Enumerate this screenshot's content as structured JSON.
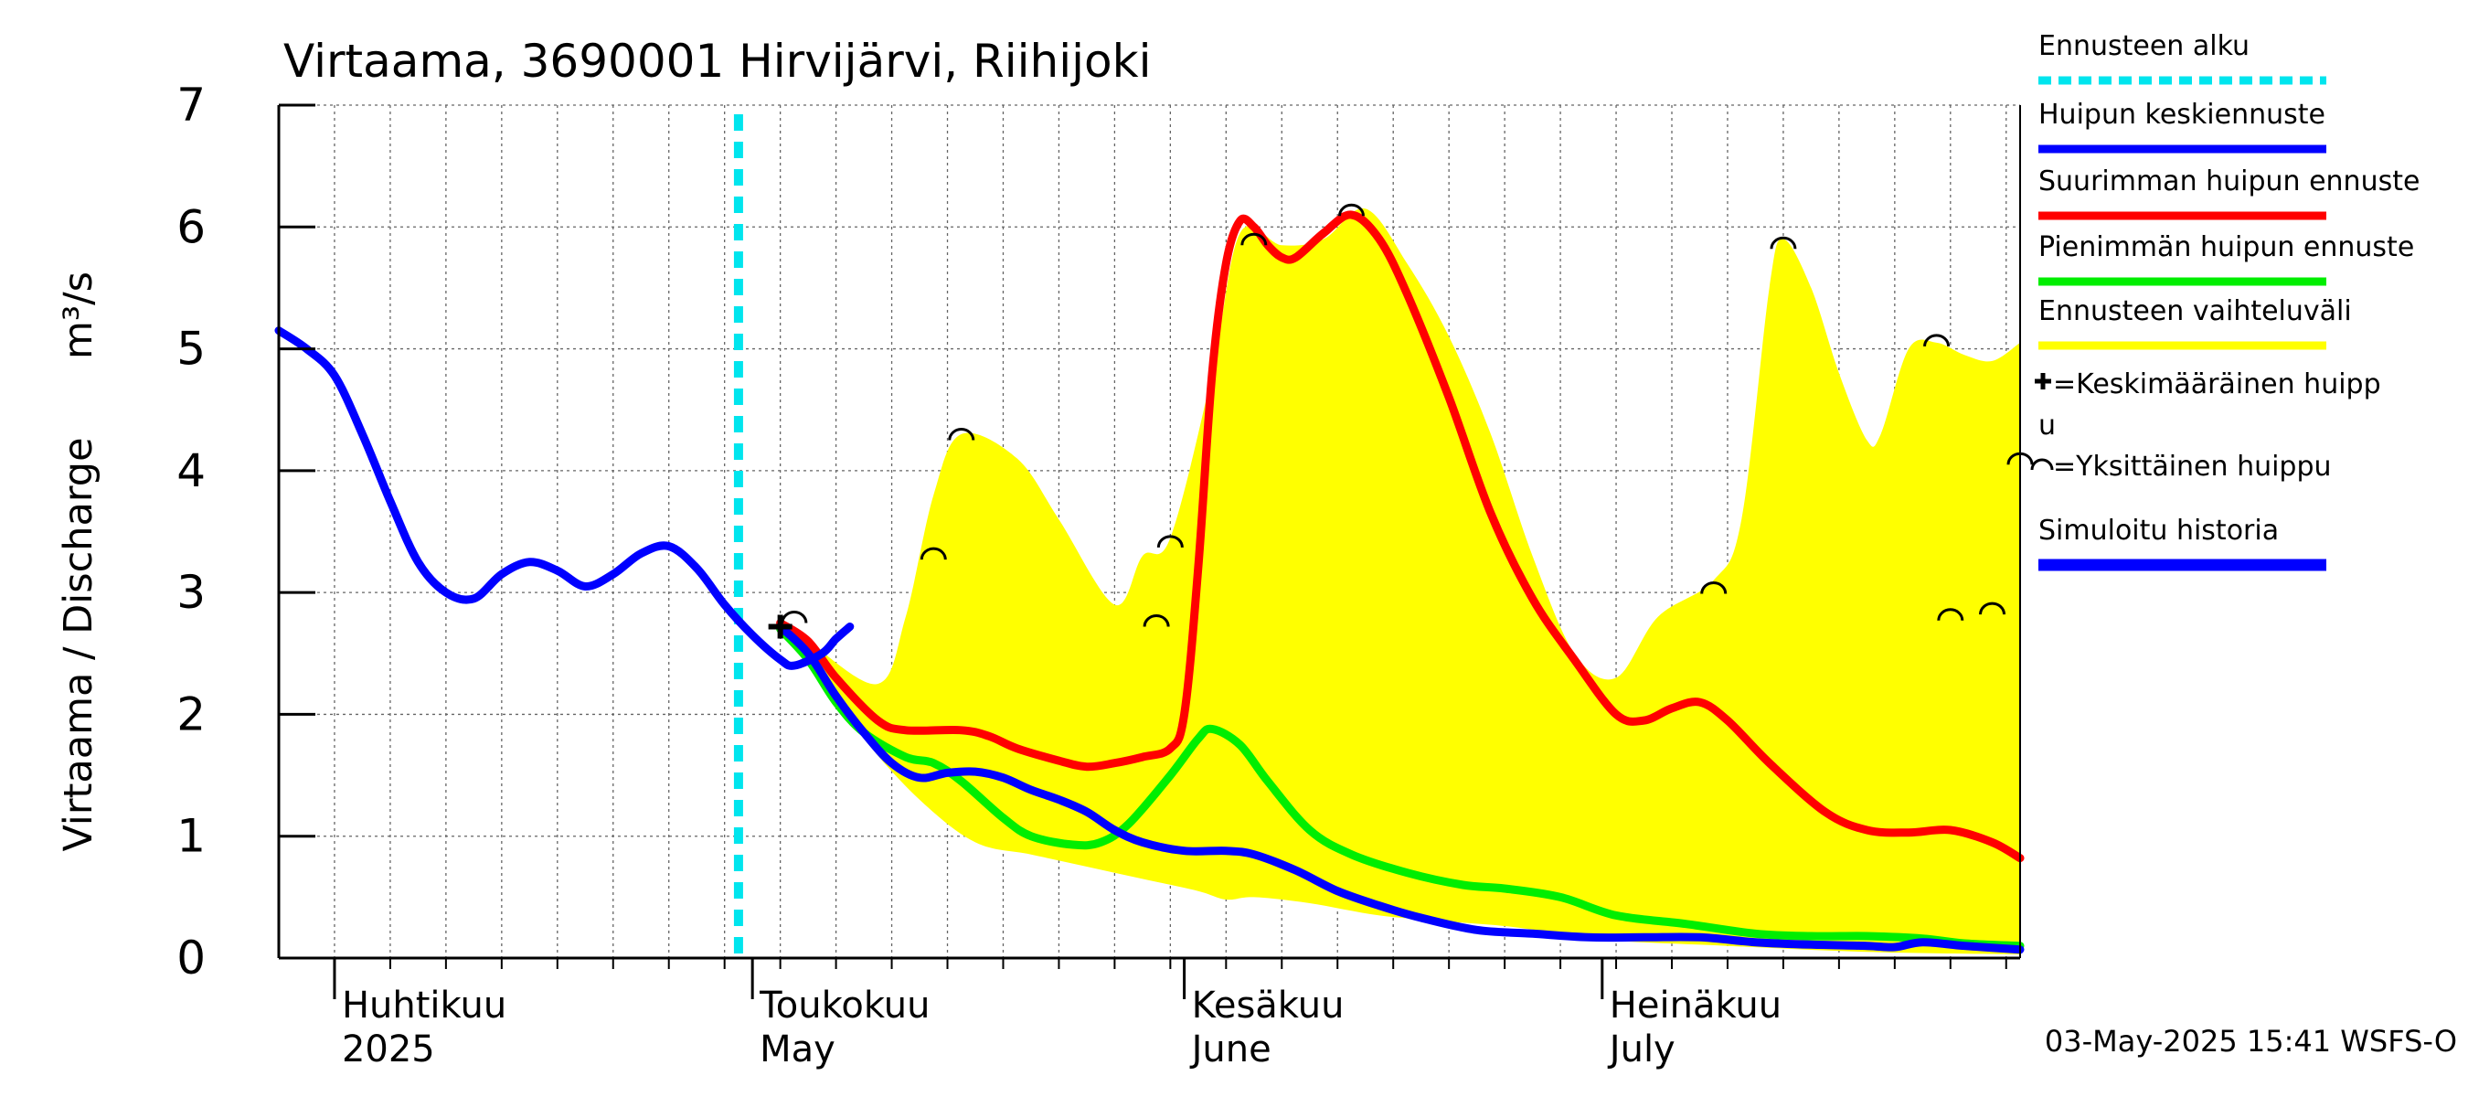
{
  "chart_data": {
    "type": "line",
    "title": "Virtaama, 3690001 Hirvijärvi, Riihijoki",
    "ylabel": "Virtaama / Discharge",
    "yunit": "m³/s",
    "ylim": [
      0,
      7
    ],
    "yticks": [
      0,
      1,
      2,
      3,
      4,
      5,
      6,
      7
    ],
    "xlim": [
      "2025-03-28",
      "2025-07-31"
    ],
    "grid": true,
    "legend_position": "right",
    "month_labels": [
      {
        "date": "2025-04-01",
        "fi": "Huhtikuu",
        "en": "2025"
      },
      {
        "date": "2025-05-01",
        "fi": "Toukokuu",
        "en": "May"
      },
      {
        "date": "2025-06-01",
        "fi": "Kesäkuu",
        "en": "June"
      },
      {
        "date": "2025-07-01",
        "fi": "Heinäkuu",
        "en": "July"
      }
    ],
    "forecast_start": "2025-04-30",
    "timestamp": "03-May-2025 15:41 WSFS-O",
    "legend": [
      {
        "label": "Ennusteen alku",
        "color": "#00e5ee",
        "style": "dashed"
      },
      {
        "label": "Huipun keskiennuste",
        "color": "#0000ff",
        "style": "solid"
      },
      {
        "label": "Suurimman huipun ennuste",
        "color": "#ff0000",
        "style": "solid"
      },
      {
        "label": "Pienimmän huipun ennuste",
        "color": "#00ee00",
        "style": "solid"
      },
      {
        "label": "Ennusteen vaihteluväli",
        "color": "#ffff00",
        "style": "solid"
      },
      {
        "label": "=Keskimääräinen huipp",
        "label2": "u",
        "marker": "plus"
      },
      {
        "label": "=Yksittäinen huippu",
        "marker": "arc"
      },
      {
        "label": "Simuloitu historia",
        "color": "#0000ff",
        "style": "solid"
      }
    ],
    "band": {
      "name": "Ennusteen vaihteluväli",
      "color": "#ffff00",
      "upper": [
        [
          "2025-05-03",
          2.75
        ],
        [
          "2025-05-05",
          2.6
        ],
        [
          "2025-05-10",
          2.25
        ],
        [
          "2025-05-12",
          2.8
        ],
        [
          "2025-05-14",
          3.8
        ],
        [
          "2025-05-16",
          4.3
        ],
        [
          "2025-05-20",
          4.1
        ],
        [
          "2025-05-23",
          3.6
        ],
        [
          "2025-05-27",
          2.9
        ],
        [
          "2025-05-29",
          3.3
        ],
        [
          "2025-05-31",
          3.45
        ],
        [
          "2025-06-03",
          4.8
        ],
        [
          "2025-06-05",
          5.95
        ],
        [
          "2025-06-08",
          5.85
        ],
        [
          "2025-06-11",
          5.9
        ],
        [
          "2025-06-14",
          6.15
        ],
        [
          "2025-06-17",
          5.7
        ],
        [
          "2025-06-20",
          5.1
        ],
        [
          "2025-06-23",
          4.3
        ],
        [
          "2025-06-26",
          3.3
        ],
        [
          "2025-06-29",
          2.5
        ],
        [
          "2025-07-02",
          2.3
        ],
        [
          "2025-07-05",
          2.8
        ],
        [
          "2025-07-09",
          3.1
        ],
        [
          "2025-07-11",
          3.6
        ],
        [
          "2025-07-13",
          5.5
        ],
        [
          "2025-07-14",
          5.9
        ],
        [
          "2025-07-16",
          5.5
        ],
        [
          "2025-07-18",
          4.8
        ],
        [
          "2025-07-20",
          4.25
        ],
        [
          "2025-07-21",
          4.3
        ],
        [
          "2025-07-23",
          5.0
        ],
        [
          "2025-07-25",
          5.05
        ],
        [
          "2025-07-27",
          4.95
        ],
        [
          "2025-07-29",
          4.9
        ],
        [
          "2025-07-31",
          5.05
        ]
      ],
      "lower": [
        [
          "2025-05-03",
          2.75
        ],
        [
          "2025-05-06",
          2.3
        ],
        [
          "2025-05-09",
          1.8
        ],
        [
          "2025-05-13",
          1.3
        ],
        [
          "2025-05-17",
          0.95
        ],
        [
          "2025-05-21",
          0.85
        ],
        [
          "2025-05-25",
          0.75
        ],
        [
          "2025-05-29",
          0.65
        ],
        [
          "2025-06-02",
          0.55
        ],
        [
          "2025-06-04",
          0.48
        ],
        [
          "2025-06-06",
          0.5
        ],
        [
          "2025-06-10",
          0.45
        ],
        [
          "2025-06-15",
          0.35
        ],
        [
          "2025-06-20",
          0.3
        ],
        [
          "2025-06-25",
          0.25
        ],
        [
          "2025-07-01",
          0.15
        ],
        [
          "2025-07-10",
          0.1
        ],
        [
          "2025-07-20",
          0.05
        ],
        [
          "2025-07-31",
          0.03
        ]
      ]
    },
    "series": [
      {
        "name": "Suurimman huipun ennuste",
        "color": "#ff0000",
        "points": [
          [
            "2025-05-03",
            2.75
          ],
          [
            "2025-05-05",
            2.6
          ],
          [
            "2025-05-07",
            2.3
          ],
          [
            "2025-05-10",
            1.95
          ],
          [
            "2025-05-12",
            1.87
          ],
          [
            "2025-05-16",
            1.87
          ],
          [
            "2025-05-18",
            1.82
          ],
          [
            "2025-05-20",
            1.72
          ],
          [
            "2025-05-23",
            1.62
          ],
          [
            "2025-05-25",
            1.57
          ],
          [
            "2025-05-27",
            1.6
          ],
          [
            "2025-05-29",
            1.65
          ],
          [
            "2025-05-31",
            1.72
          ],
          [
            "2025-06-01",
            2.0
          ],
          [
            "2025-06-02",
            3.2
          ],
          [
            "2025-06-03",
            4.8
          ],
          [
            "2025-06-04",
            5.7
          ],
          [
            "2025-06-05",
            6.05
          ],
          [
            "2025-06-06",
            6.0
          ],
          [
            "2025-06-07",
            5.85
          ],
          [
            "2025-06-08",
            5.75
          ],
          [
            "2025-06-09",
            5.75
          ],
          [
            "2025-06-11",
            5.95
          ],
          [
            "2025-06-13",
            6.1
          ],
          [
            "2025-06-15",
            5.9
          ],
          [
            "2025-06-17",
            5.45
          ],
          [
            "2025-06-20",
            4.6
          ],
          [
            "2025-06-23",
            3.65
          ],
          [
            "2025-06-26",
            2.95
          ],
          [
            "2025-06-29",
            2.45
          ],
          [
            "2025-07-02",
            2.0
          ],
          [
            "2025-07-04",
            1.95
          ],
          [
            "2025-07-06",
            2.05
          ],
          [
            "2025-07-08",
            2.1
          ],
          [
            "2025-07-10",
            1.95
          ],
          [
            "2025-07-13",
            1.6
          ],
          [
            "2025-07-17",
            1.2
          ],
          [
            "2025-07-20",
            1.05
          ],
          [
            "2025-07-23",
            1.03
          ],
          [
            "2025-07-26",
            1.05
          ],
          [
            "2025-07-29",
            0.95
          ],
          [
            "2025-07-31",
            0.82
          ]
        ]
      },
      {
        "name": "Pienimmän huipun ennuste",
        "color": "#00ee00",
        "points": [
          [
            "2025-05-03",
            2.7
          ],
          [
            "2025-05-05",
            2.45
          ],
          [
            "2025-05-07",
            2.1
          ],
          [
            "2025-05-09",
            1.85
          ],
          [
            "2025-05-12",
            1.65
          ],
          [
            "2025-05-14",
            1.6
          ],
          [
            "2025-05-16",
            1.45
          ],
          [
            "2025-05-19",
            1.15
          ],
          [
            "2025-05-21",
            1.0
          ],
          [
            "2025-05-24",
            0.93
          ],
          [
            "2025-05-26",
            0.95
          ],
          [
            "2025-05-28",
            1.1
          ],
          [
            "2025-05-31",
            1.5
          ],
          [
            "2025-06-02",
            1.8
          ],
          [
            "2025-06-03",
            1.88
          ],
          [
            "2025-06-05",
            1.75
          ],
          [
            "2025-06-07",
            1.45
          ],
          [
            "2025-06-10",
            1.05
          ],
          [
            "2025-06-13",
            0.85
          ],
          [
            "2025-06-17",
            0.7
          ],
          [
            "2025-06-21",
            0.6
          ],
          [
            "2025-06-24",
            0.57
          ],
          [
            "2025-06-28",
            0.5
          ],
          [
            "2025-07-02",
            0.35
          ],
          [
            "2025-07-07",
            0.28
          ],
          [
            "2025-07-12",
            0.2
          ],
          [
            "2025-07-16",
            0.18
          ],
          [
            "2025-07-20",
            0.18
          ],
          [
            "2025-07-24",
            0.16
          ],
          [
            "2025-07-27",
            0.12
          ],
          [
            "2025-07-31",
            0.1
          ]
        ]
      },
      {
        "name": "Huipun keskiennuste",
        "color": "#0000ff",
        "points": [
          [
            "2025-05-03",
            2.72
          ],
          [
            "2025-05-05",
            2.5
          ],
          [
            "2025-05-07",
            2.15
          ],
          [
            "2025-05-09",
            1.85
          ],
          [
            "2025-05-11",
            1.6
          ],
          [
            "2025-05-13",
            1.48
          ],
          [
            "2025-05-15",
            1.52
          ],
          [
            "2025-05-17",
            1.53
          ],
          [
            "2025-05-19",
            1.48
          ],
          [
            "2025-05-21",
            1.38
          ],
          [
            "2025-05-23",
            1.3
          ],
          [
            "2025-05-25",
            1.2
          ],
          [
            "2025-05-27",
            1.05
          ],
          [
            "2025-05-29",
            0.95
          ],
          [
            "2025-06-01",
            0.88
          ],
          [
            "2025-06-04",
            0.88
          ],
          [
            "2025-06-06",
            0.85
          ],
          [
            "2025-06-09",
            0.72
          ],
          [
            "2025-06-12",
            0.55
          ],
          [
            "2025-06-15",
            0.43
          ],
          [
            "2025-06-18",
            0.33
          ],
          [
            "2025-06-22",
            0.23
          ],
          [
            "2025-06-26",
            0.2
          ],
          [
            "2025-06-30",
            0.17
          ],
          [
            "2025-07-04",
            0.17
          ],
          [
            "2025-07-08",
            0.17
          ],
          [
            "2025-07-12",
            0.13
          ],
          [
            "2025-07-16",
            0.11
          ],
          [
            "2025-07-20",
            0.1
          ],
          [
            "2025-07-22",
            0.09
          ],
          [
            "2025-07-24",
            0.13
          ],
          [
            "2025-07-27",
            0.1
          ],
          [
            "2025-07-31",
            0.07
          ]
        ]
      },
      {
        "name": "Simuloitu historia",
        "color": "#0000ff",
        "points": [
          [
            "2025-03-28",
            5.15
          ],
          [
            "2025-03-30",
            5.0
          ],
          [
            "2025-04-01",
            4.78
          ],
          [
            "2025-04-03",
            4.3
          ],
          [
            "2025-04-05",
            3.75
          ],
          [
            "2025-04-07",
            3.25
          ],
          [
            "2025-04-09",
            3.0
          ],
          [
            "2025-04-11",
            2.95
          ],
          [
            "2025-04-13",
            3.15
          ],
          [
            "2025-04-15",
            3.25
          ],
          [
            "2025-04-17",
            3.18
          ],
          [
            "2025-04-19",
            3.05
          ],
          [
            "2025-04-21",
            3.15
          ],
          [
            "2025-04-23",
            3.32
          ],
          [
            "2025-04-25",
            3.38
          ],
          [
            "2025-04-27",
            3.2
          ],
          [
            "2025-04-29",
            2.9
          ],
          [
            "2025-05-01",
            2.65
          ],
          [
            "2025-05-03",
            2.45
          ],
          [
            "2025-05-04",
            2.4
          ],
          [
            "2025-05-06",
            2.5
          ],
          [
            "2025-05-07",
            2.62
          ],
          [
            "2025-05-08",
            2.72
          ]
        ]
      }
    ],
    "mean_peaks": [
      [
        "2025-05-03",
        2.72
      ]
    ],
    "single_peaks": [
      [
        "2025-05-04",
        2.78
      ],
      [
        "2025-05-14",
        3.3
      ],
      [
        "2025-05-16",
        4.28
      ],
      [
        "2025-05-30",
        2.75
      ],
      [
        "2025-05-31",
        3.4
      ],
      [
        "2025-06-06",
        5.88
      ],
      [
        "2025-06-13",
        6.12
      ],
      [
        "2025-07-09",
        3.02
      ],
      [
        "2025-07-14",
        5.85
      ],
      [
        "2025-07-25",
        5.05
      ],
      [
        "2025-07-26",
        2.8
      ],
      [
        "2025-07-29",
        2.85
      ],
      [
        "2025-07-31",
        4.08
      ]
    ]
  }
}
